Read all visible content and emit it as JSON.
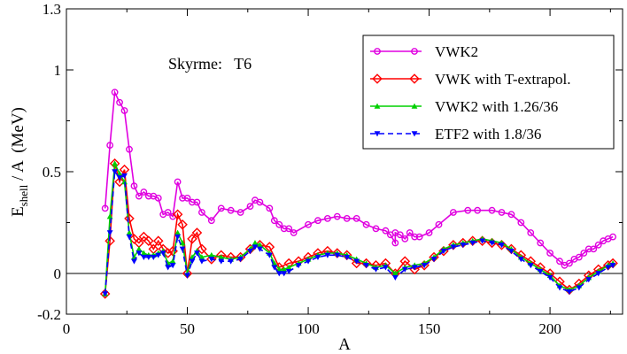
{
  "chart_data": {
    "type": "line",
    "title": "",
    "annotation": "Skyrme:   T6",
    "xlabel": "A",
    "ylabel_main": "E",
    "ylabel_sub": "shell",
    "ylabel_rest": " / A  (MeV)",
    "xlim": [
      0,
      230
    ],
    "ylim": [
      -0.2,
      1.3
    ],
    "xticks": [
      0,
      50,
      100,
      150,
      200
    ],
    "xtick_labels": [
      "0",
      "50",
      "100",
      "150",
      "200"
    ],
    "yticks": [
      -0.2,
      0,
      0.5,
      1,
      1.3
    ],
    "ytick_labels": [
      "-0.2",
      "0",
      "0.5",
      "1",
      "1.3"
    ],
    "zero_line": true,
    "legend_position": "top-right",
    "series": [
      {
        "name": "VWK2",
        "color": "#e000e0",
        "marker": "circle",
        "dash": "",
        "x": [
          16,
          18,
          20,
          22,
          24,
          26,
          28,
          30,
          32,
          34,
          36,
          38,
          40,
          42,
          44,
          46,
          48,
          50,
          52,
          54,
          56,
          60,
          64,
          68,
          72,
          76,
          78,
          80,
          84,
          86,
          88,
          90,
          92,
          94,
          100,
          104,
          108,
          112,
          116,
          120,
          124,
          128,
          132,
          134,
          136,
          136,
          138,
          140,
          142,
          144,
          146,
          150,
          154,
          160,
          166,
          170,
          176,
          180,
          184,
          188,
          192,
          196,
          200,
          204,
          206,
          208,
          210,
          212,
          214,
          216,
          218,
          220,
          222,
          224,
          226
        ],
        "y": [
          0.32,
          0.63,
          0.89,
          0.84,
          0.8,
          0.61,
          0.43,
          0.38,
          0.4,
          0.38,
          0.38,
          0.37,
          0.29,
          0.3,
          0.28,
          0.45,
          0.37,
          0.37,
          0.35,
          0.35,
          0.3,
          0.26,
          0.32,
          0.31,
          0.3,
          0.33,
          0.36,
          0.35,
          0.32,
          0.26,
          0.24,
          0.22,
          0.22,
          0.2,
          0.24,
          0.26,
          0.27,
          0.28,
          0.27,
          0.27,
          0.24,
          0.22,
          0.21,
          0.19,
          0.15,
          0.2,
          0.19,
          0.17,
          0.2,
          0.18,
          0.18,
          0.2,
          0.24,
          0.3,
          0.31,
          0.31,
          0.31,
          0.3,
          0.29,
          0.25,
          0.2,
          0.15,
          0.1,
          0.06,
          0.04,
          0.05,
          0.07,
          0.08,
          0.1,
          0.12,
          0.12,
          0.14,
          0.16,
          0.17,
          0.18
        ]
      },
      {
        "name": "VWK with T-extrapol.",
        "color": "#ff0000",
        "marker": "diamond",
        "dash": "",
        "x": [
          16,
          18,
          20,
          22,
          24,
          26,
          28,
          30,
          32,
          34,
          36,
          38,
          40,
          42,
          44,
          46,
          48,
          50,
          52,
          54,
          56,
          60,
          64,
          68,
          72,
          76,
          80,
          84,
          88,
          92,
          96,
          100,
          104,
          108,
          112,
          116,
          120,
          124,
          128,
          132,
          136,
          140,
          144,
          148,
          152,
          156,
          160,
          164,
          168,
          172,
          176,
          180,
          184,
          188,
          192,
          196,
          200,
          204,
          208,
          212,
          216,
          220,
          224,
          226
        ],
        "y": [
          -0.1,
          0.16,
          0.54,
          0.45,
          0.51,
          0.27,
          0.17,
          0.15,
          0.18,
          0.16,
          0.12,
          0.16,
          0.12,
          0.1,
          0.11,
          0.29,
          0.24,
          0.0,
          0.17,
          0.2,
          0.12,
          0.07,
          0.09,
          0.08,
          0.08,
          0.12,
          0.14,
          0.13,
          0.03,
          0.05,
          0.06,
          0.08,
          0.1,
          0.11,
          0.1,
          0.09,
          0.05,
          0.05,
          0.04,
          0.05,
          0.0,
          0.06,
          0.02,
          0.04,
          0.08,
          0.11,
          0.14,
          0.15,
          0.16,
          0.16,
          0.15,
          0.14,
          0.12,
          0.09,
          0.06,
          0.03,
          0.0,
          -0.04,
          -0.08,
          -0.05,
          -0.01,
          0.02,
          0.04,
          0.05
        ]
      },
      {
        "name": "VWK2 with 1.26/36",
        "color": "#00d000",
        "marker": "triangle-up",
        "dash": "",
        "x": [
          16,
          18,
          20,
          22,
          24,
          26,
          28,
          30,
          32,
          34,
          36,
          38,
          40,
          42,
          44,
          46,
          48,
          50,
          52,
          54,
          56,
          60,
          64,
          68,
          72,
          76,
          78,
          80,
          84,
          86,
          88,
          90,
          92,
          96,
          100,
          104,
          108,
          112,
          116,
          120,
          124,
          128,
          132,
          136,
          140,
          144,
          148,
          152,
          156,
          160,
          164,
          168,
          172,
          176,
          180,
          184,
          188,
          192,
          196,
          200,
          204,
          208,
          212,
          216,
          220,
          224,
          226
        ],
        "y": [
          -0.1,
          0.28,
          0.54,
          0.49,
          0.45,
          0.2,
          0.08,
          0.12,
          0.1,
          0.09,
          0.09,
          0.1,
          0.11,
          0.05,
          0.06,
          0.2,
          0.15,
          0.0,
          0.08,
          0.11,
          0.08,
          0.09,
          0.08,
          0.07,
          0.08,
          0.12,
          0.15,
          0.14,
          0.1,
          0.05,
          0.02,
          0.02,
          0.03,
          0.05,
          0.07,
          0.09,
          0.1,
          0.1,
          0.09,
          0.07,
          0.05,
          0.03,
          0.04,
          0.0,
          0.03,
          0.04,
          0.05,
          0.08,
          0.12,
          0.14,
          0.15,
          0.16,
          0.17,
          0.16,
          0.15,
          0.12,
          0.08,
          0.05,
          0.02,
          -0.01,
          -0.06,
          -0.08,
          -0.06,
          -0.02,
          0.01,
          0.04,
          0.05
        ]
      },
      {
        "name": "ETF2 with 1.8/36",
        "color": "#0000ff",
        "marker": "triangle-down",
        "dash": "6,4",
        "x": [
          16,
          18,
          20,
          22,
          24,
          26,
          28,
          30,
          32,
          34,
          36,
          38,
          40,
          42,
          44,
          46,
          48,
          50,
          52,
          54,
          56,
          60,
          64,
          68,
          72,
          76,
          78,
          80,
          84,
          86,
          88,
          90,
          92,
          96,
          100,
          104,
          108,
          112,
          116,
          120,
          124,
          128,
          132,
          136,
          140,
          144,
          148,
          152,
          156,
          160,
          164,
          168,
          172,
          176,
          180,
          184,
          188,
          192,
          196,
          200,
          204,
          208,
          212,
          216,
          220,
          224,
          226
        ],
        "y": [
          -0.1,
          0.2,
          0.5,
          0.47,
          0.48,
          0.18,
          0.06,
          0.1,
          0.08,
          0.08,
          0.08,
          0.09,
          0.1,
          0.03,
          0.04,
          0.18,
          0.12,
          -0.01,
          0.06,
          0.1,
          0.06,
          0.07,
          0.06,
          0.06,
          0.07,
          0.11,
          0.13,
          0.12,
          0.09,
          0.03,
          0.0,
          0.0,
          0.01,
          0.04,
          0.06,
          0.08,
          0.09,
          0.09,
          0.08,
          0.06,
          0.04,
          0.02,
          0.03,
          -0.02,
          0.02,
          0.03,
          0.04,
          0.07,
          0.11,
          0.13,
          0.14,
          0.15,
          0.16,
          0.15,
          0.14,
          0.11,
          0.07,
          0.04,
          0.01,
          -0.02,
          -0.07,
          -0.09,
          -0.07,
          -0.03,
          0.0,
          0.03,
          0.04
        ]
      }
    ]
  }
}
